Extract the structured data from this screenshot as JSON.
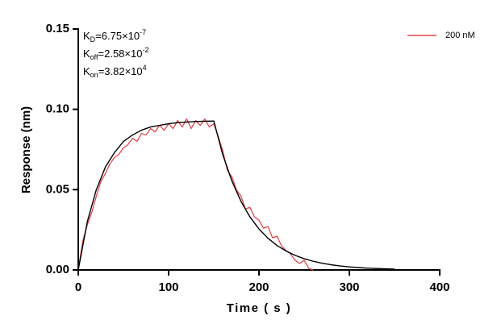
{
  "chart_data": {
    "type": "line",
    "xlabel": "Time ( s )",
    "ylabel": "Response (nm)",
    "xlim": [
      0,
      400
    ],
    "ylim": [
      0,
      0.15
    ],
    "xticks": [
      0,
      100,
      200,
      300,
      400
    ],
    "yticks": [
      {
        "value": 0,
        "label": "0.00"
      },
      0.05,
      {
        "value": 0.1,
        "label": "0.10"
      },
      0.15
    ],
    "legend": "top-right",
    "annotations": [
      {
        "main": "K",
        "sub": "D",
        "rest": "=6.75×10",
        "sup": "-7"
      },
      {
        "main": "K",
        "sub": "off",
        "rest": "=2.58×10",
        "sup": "-2"
      },
      {
        "main": "K",
        "sub": "on",
        "rest": "=3.82×10",
        "sup": "4"
      }
    ],
    "series": [
      {
        "name": "200 nM",
        "color": "#e0474c",
        "x": [
          0,
          5,
          10,
          15,
          20,
          25,
          30,
          35,
          40,
          45,
          50,
          55,
          60,
          65,
          70,
          75,
          80,
          85,
          90,
          95,
          100,
          105,
          110,
          115,
          120,
          125,
          130,
          135,
          140,
          145,
          150,
          155,
          160,
          165,
          170,
          175,
          180,
          185,
          190,
          195,
          200,
          205,
          210,
          215,
          220,
          225,
          230,
          235,
          240,
          245,
          250,
          255,
          260
        ],
        "values": [
          0.0,
          0.018,
          0.028,
          0.036,
          0.046,
          0.055,
          0.06,
          0.066,
          0.07,
          0.072,
          0.076,
          0.078,
          0.082,
          0.08,
          0.085,
          0.084,
          0.088,
          0.086,
          0.09,
          0.087,
          0.091,
          0.088,
          0.093,
          0.089,
          0.094,
          0.088,
          0.093,
          0.09,
          0.094,
          0.089,
          0.091,
          0.083,
          0.074,
          0.062,
          0.058,
          0.05,
          0.046,
          0.038,
          0.039,
          0.033,
          0.031,
          0.026,
          0.027,
          0.02,
          0.021,
          0.015,
          0.012,
          0.01,
          0.006,
          0.004,
          0.006,
          0.001,
          0.0
        ]
      },
      {
        "color": "#000000",
        "x": [
          0,
          10,
          20,
          30,
          40,
          50,
          60,
          70,
          80,
          90,
          100,
          110,
          120,
          130,
          140,
          150,
          160,
          170,
          180,
          190,
          200,
          210,
          220,
          230,
          240,
          250,
          260,
          270,
          280,
          290,
          300,
          310,
          320,
          330,
          340,
          350
        ],
        "values": [
          0,
          0.03,
          0.05,
          0.064,
          0.073,
          0.08,
          0.084,
          0.087,
          0.089,
          0.09,
          0.091,
          0.0917,
          0.0921,
          0.0924,
          0.0926,
          0.0927,
          0.0716,
          0.0554,
          0.0428,
          0.033,
          0.0255,
          0.0197,
          0.0152,
          0.0118,
          0.0091,
          0.007,
          0.0054,
          0.0042,
          0.0032,
          0.0025,
          0.0019,
          0.0015,
          0.0011,
          0.0009,
          0.0007,
          0.0005
        ]
      }
    ]
  }
}
